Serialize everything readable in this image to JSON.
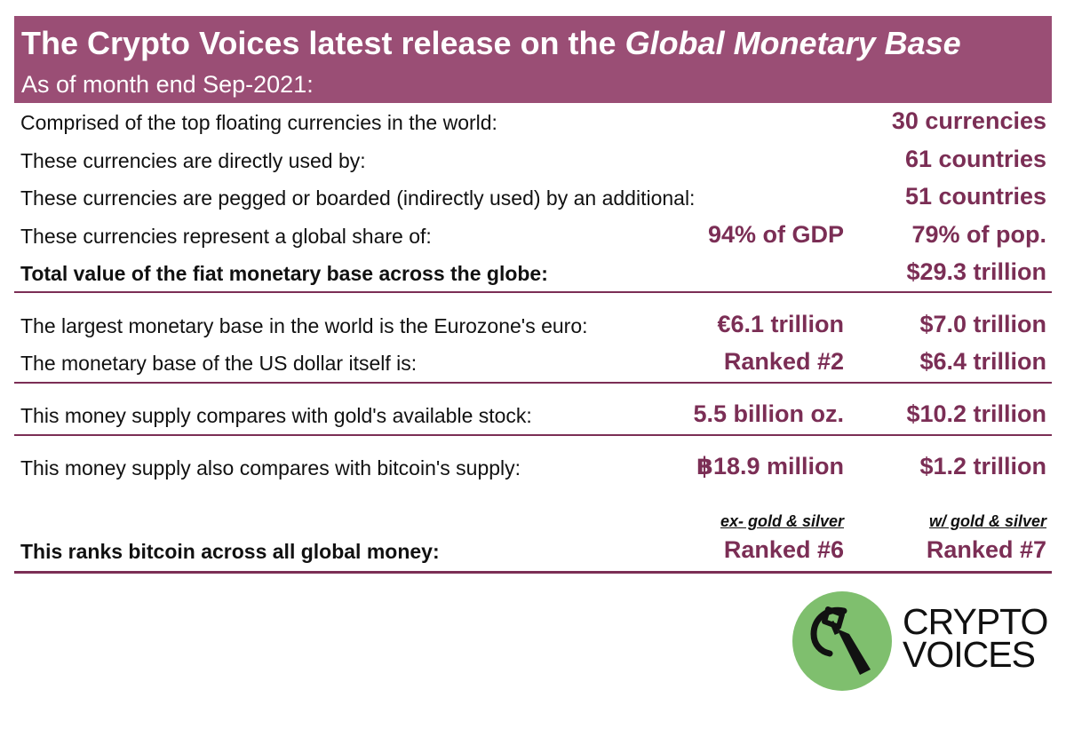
{
  "header": {
    "title_prefix": "The Crypto Voices latest release on the ",
    "title_italic": "Global Monetary Base",
    "subtitle": "As of month end Sep-2021:"
  },
  "rows": {
    "r1": {
      "label": "Comprised of the top floating currencies in the world:",
      "right": "30 currencies"
    },
    "r2": {
      "label": "These currencies are directly used by:",
      "right": "61 countries"
    },
    "r3": {
      "label": "These currencies are pegged or boarded (indirectly used) by an additional:",
      "right": "51 countries"
    },
    "r4": {
      "label": "These currencies represent a global share of:",
      "mid": "94% of GDP",
      "right": "79% of pop."
    },
    "r5": {
      "label": "Total value of the fiat monetary base across the globe:",
      "right": "$29.3 trillion"
    },
    "r6": {
      "label": "The largest monetary base in the world is the Eurozone's euro:",
      "mid": "€6.1 trillion",
      "right": "$7.0 trillion"
    },
    "r7": {
      "label": "The monetary base of the US dollar itself is:",
      "mid": "Ranked #2",
      "right": "$6.4 trillion"
    },
    "r8": {
      "label": "This money supply compares with gold's available stock:",
      "mid": "5.5 billion oz.",
      "right": "$10.2 trillion"
    },
    "r9": {
      "label": "This money supply also compares with bitcoin's supply:",
      "mid": "฿18.9 million",
      "right": "$1.2 trillion"
    },
    "r10": {
      "label": "This ranks bitcoin across all global money:",
      "mid": "Ranked #6",
      "right": "Ranked #7"
    }
  },
  "column_headers": {
    "mid": "ex- gold & silver",
    "right": "w/ gold & silver"
  },
  "logo": {
    "line1": "CRYPTO",
    "line2": "VOICES",
    "icon": "microphone-c-icon",
    "circle_color": "#7fbf6e"
  },
  "colors": {
    "header_bg": "#9a4e75",
    "accent": "#7b2e55"
  }
}
